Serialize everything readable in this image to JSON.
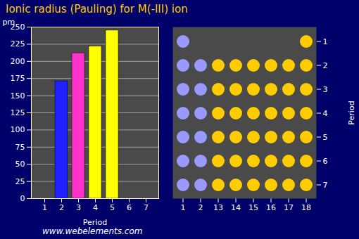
{
  "chart_data": [
    {
      "type": "bar",
      "title": "Ionic radius (Pauling) for M(-III) ion",
      "categories": [
        "1",
        "2",
        "3",
        "4",
        "5",
        "6",
        "7"
      ],
      "values": [
        null,
        171,
        212,
        222,
        245,
        null,
        null
      ],
      "colors": [
        null,
        "#2020ff",
        "#ff33cc",
        "#ffff00",
        "#ffff00",
        null,
        null
      ],
      "xlabel": "Period",
      "ylabel": "pm",
      "ylim": [
        0,
        250
      ],
      "yticks": [
        0,
        25,
        50,
        75,
        100,
        125,
        150,
        175,
        200,
        225,
        250
      ],
      "grid": true,
      "caption": "www.webelements.com"
    },
    {
      "type": "grid",
      "categories": [
        "1",
        "2",
        "13",
        "14",
        "15",
        "16",
        "17",
        "18"
      ],
      "periods": [
        1,
        2,
        3,
        4,
        5,
        6,
        7
      ],
      "ylabel": "Period",
      "color": "#ffcc00"
    }
  ]
}
